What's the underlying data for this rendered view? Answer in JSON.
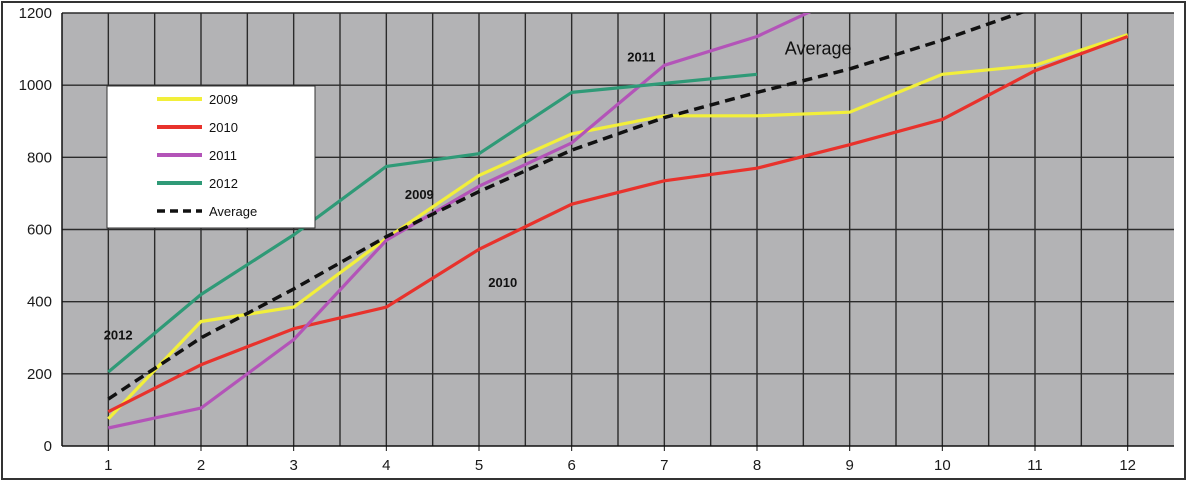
{
  "chart_data": {
    "type": "line",
    "x": [
      1,
      2,
      3,
      4,
      5,
      6,
      7,
      8,
      9,
      10,
      11,
      12
    ],
    "ylim": [
      0,
      1200
    ],
    "yticks": [
      0,
      200,
      400,
      600,
      800,
      1000,
      1200
    ],
    "grid": true,
    "legend_position": "left",
    "series": [
      {
        "name": "2009",
        "color": "#f2ef3a",
        "dash": false,
        "values": [
          75,
          345,
          385,
          575,
          750,
          865,
          915,
          915,
          925,
          1030,
          1055,
          1140
        ]
      },
      {
        "name": "2010",
        "color": "#e8322c",
        "dash": false,
        "values": [
          95,
          225,
          325,
          385,
          545,
          670,
          735,
          770,
          835,
          905,
          1040,
          1135
        ]
      },
      {
        "name": "2011",
        "color": "#b354b8",
        "dash": false,
        "values": [
          50,
          105,
          295,
          570,
          720,
          840,
          1055,
          1135,
          1255,
          null,
          null,
          null
        ]
      },
      {
        "name": "2012",
        "color": "#2f9a77",
        "dash": false,
        "values": [
          205,
          420,
          585,
          775,
          810,
          980,
          1005,
          1030,
          null,
          null,
          null,
          null
        ]
      },
      {
        "name": "Average",
        "color": "#111111",
        "dash": true,
        "values": [
          130,
          300,
          435,
          580,
          705,
          820,
          910,
          980,
          1045,
          1125,
          1215,
          null
        ]
      }
    ],
    "annotations": [
      {
        "text": "2012",
        "x": 0.95,
        "y": 295
      },
      {
        "text": "2009",
        "x": 4.2,
        "y": 685
      },
      {
        "text": "2010",
        "x": 5.1,
        "y": 440
      },
      {
        "text": "2011",
        "x": 6.6,
        "y": 1065
      },
      {
        "text": "Average",
        "x": 8.3,
        "y": 1085
      }
    ]
  }
}
